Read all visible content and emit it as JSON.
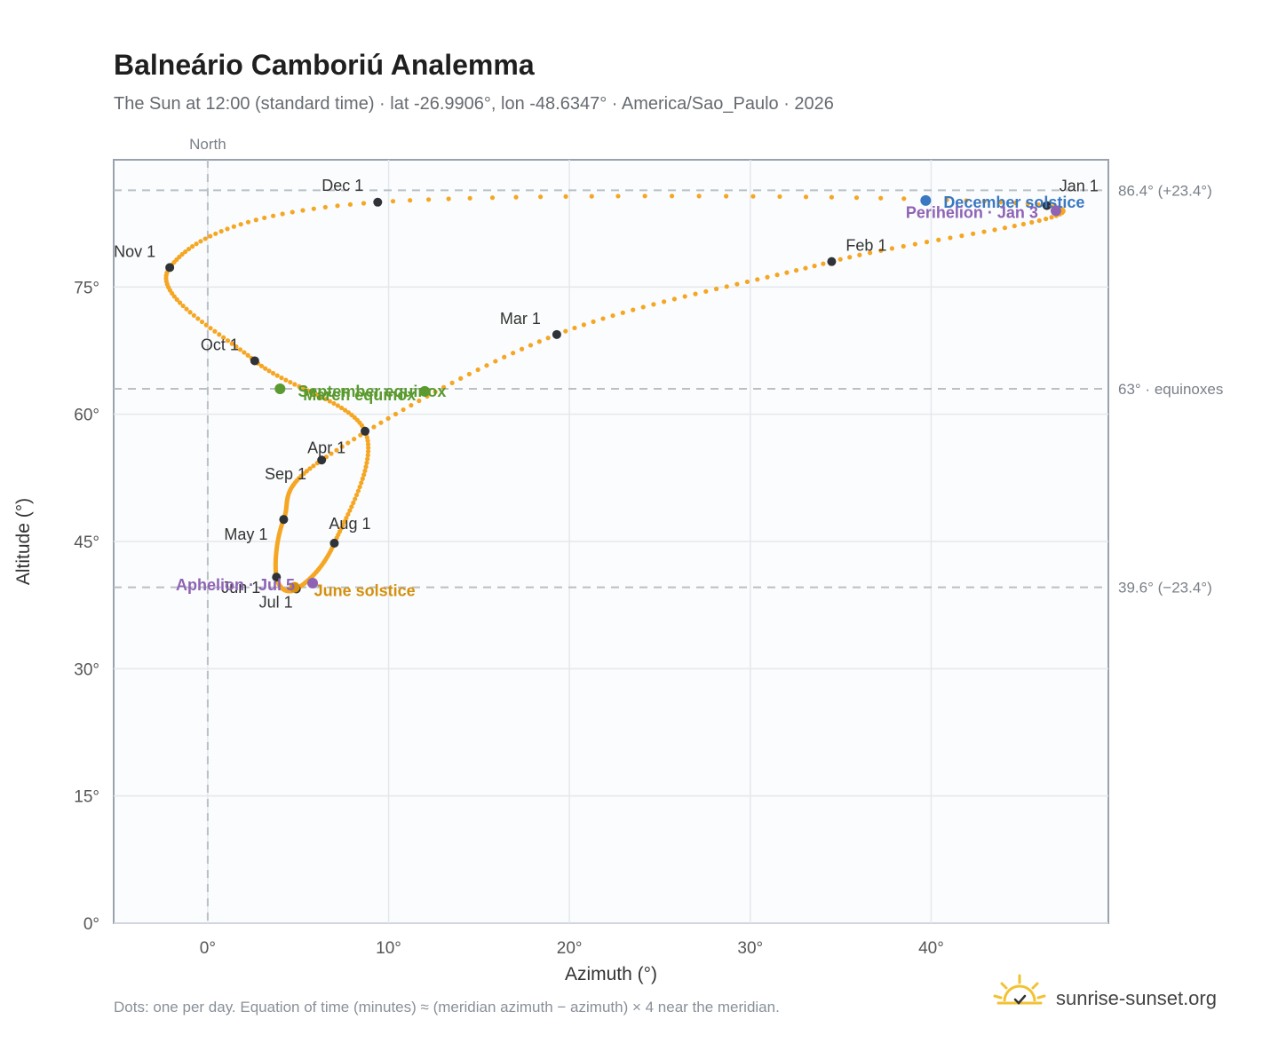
{
  "header": {
    "title": "Balneário Camboriú Analemma",
    "subtitle": "The Sun at 12:00 (standard time) · lat -26.9906°, lon -48.6347° · America/Sao_Paulo · 2026"
  },
  "footer": {
    "note": "Dots: one per day. Equation of time (minutes) ≈ (meridian azimuth − azimuth) × 4 near the meridian.",
    "brand": "sunrise-sunset.org"
  },
  "colors": {
    "analemma": "#f5a623",
    "month_dot": "#2f3338",
    "december_solstice": "#3a78c2",
    "june_solstice": "#d4900e",
    "equinox": "#5a9a2e",
    "perihelion_aphelion": "#8e63b5",
    "reference_line": "#b9c0c6",
    "plot_background": "#fbfcfd",
    "plot_border": "#9aa3ad",
    "brand_sun": "#f2c233"
  },
  "chart_data": {
    "type": "scatter",
    "title": "Balneário Camboriú Analemma",
    "subtitle": "The Sun at 12:00 (standard time) · lat -26.9906°, lon -48.6347° · America/Sao_Paulo · 2026",
    "xlabel": "Azimuth (°)",
    "ylabel": "Altitude (°)",
    "xlim": [
      -5.2,
      49.8
    ],
    "ylim": [
      0,
      90
    ],
    "x_ticks": [
      0,
      10,
      20,
      30,
      40
    ],
    "x_tick_labels": [
      "0°",
      "10°",
      "20°",
      "30°",
      "40°"
    ],
    "y_ticks": [
      0,
      15,
      30,
      45,
      60,
      75
    ],
    "y_tick_labels": [
      "0°",
      "15°",
      "30°",
      "45°",
      "60°",
      "75°"
    ],
    "grid": true,
    "meridian": {
      "azimuth": 0,
      "label": "North"
    },
    "reference_lines": [
      {
        "altitude": 86.4,
        "label": "86.4° (+23.4°)"
      },
      {
        "altitude": 63.0,
        "label": "63° · equinoxes"
      },
      {
        "altitude": 39.6,
        "label": "39.6° (−23.4°)"
      }
    ],
    "month_markers": [
      {
        "label": "Jan 1",
        "date": "2026-01-01",
        "azimuth": 46.4,
        "altitude": 84.6
      },
      {
        "label": "Feb 1",
        "date": "2026-02-01",
        "azimuth": 34.5,
        "altitude": 78.0
      },
      {
        "label": "Mar 1",
        "date": "2026-03-01",
        "azimuth": 19.3,
        "altitude": 69.4
      },
      {
        "label": "Apr 1",
        "date": "2026-04-01",
        "azimuth": 6.3,
        "altitude": 54.6
      },
      {
        "label": "May 1",
        "date": "2026-05-01",
        "azimuth": 4.2,
        "altitude": 47.6
      },
      {
        "label": "Jun 1",
        "date": "2026-06-01",
        "azimuth": 3.8,
        "altitude": 40.8
      },
      {
        "label": "Jul 1",
        "date": "2026-07-01",
        "azimuth": 4.9,
        "altitude": 39.4
      },
      {
        "label": "Aug 1",
        "date": "2026-08-01",
        "azimuth": 7.0,
        "altitude": 44.8
      },
      {
        "label": "Sep 1",
        "date": "2026-09-01",
        "azimuth": 8.7,
        "altitude": 58.0
      },
      {
        "label": "Oct 1",
        "date": "2026-10-01",
        "azimuth": 2.6,
        "altitude": 66.3
      },
      {
        "label": "Nov 1",
        "date": "2026-11-01",
        "azimuth": -2.1,
        "altitude": 77.3
      },
      {
        "label": "Dec 1",
        "date": "2026-12-01",
        "azimuth": 9.4,
        "altitude": 85.0
      }
    ],
    "events": [
      {
        "label": "December solstice",
        "azimuth": 39.7,
        "altitude": 85.2,
        "color": "#3a78c2"
      },
      {
        "label": "Perihelion · Jan 3",
        "azimuth": 46.9,
        "altitude": 84.0,
        "color": "#8e63b5"
      },
      {
        "label": "September equinox",
        "azimuth": 4.0,
        "altitude": 63.0,
        "color": "#5a9a2e"
      },
      {
        "label": "March equinox",
        "azimuth": 12.0,
        "altitude": 62.7,
        "color": "#5a9a2e"
      },
      {
        "label": "June solstice",
        "azimuth": 4.8,
        "altitude": 39.6,
        "color": "#d4900e"
      },
      {
        "label": "Aphelion · Jul 5",
        "azimuth": 5.8,
        "altitude": 40.1,
        "color": "#8e63b5"
      }
    ]
  }
}
